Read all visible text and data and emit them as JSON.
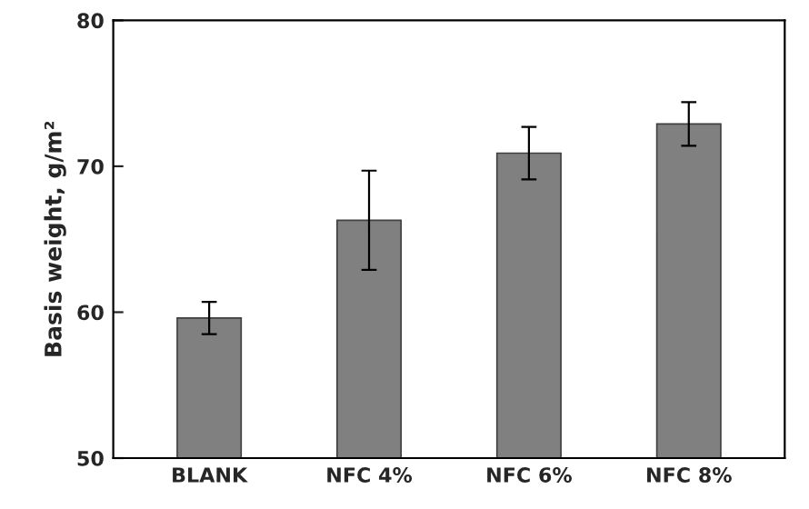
{
  "chart_data": {
    "type": "bar",
    "ylabel": "Basis weight, g/m²",
    "categories": [
      "BLANK",
      "NFC 4%",
      "NFC 6%",
      "NFC 8%"
    ],
    "values": [
      59.6,
      66.3,
      70.9,
      72.9
    ],
    "errors": [
      1.1,
      3.4,
      1.8,
      1.5
    ],
    "color": "#808080",
    "ylim": [
      50,
      80
    ],
    "yticks": [
      50,
      60,
      70,
      80
    ],
    "grid": false
  }
}
